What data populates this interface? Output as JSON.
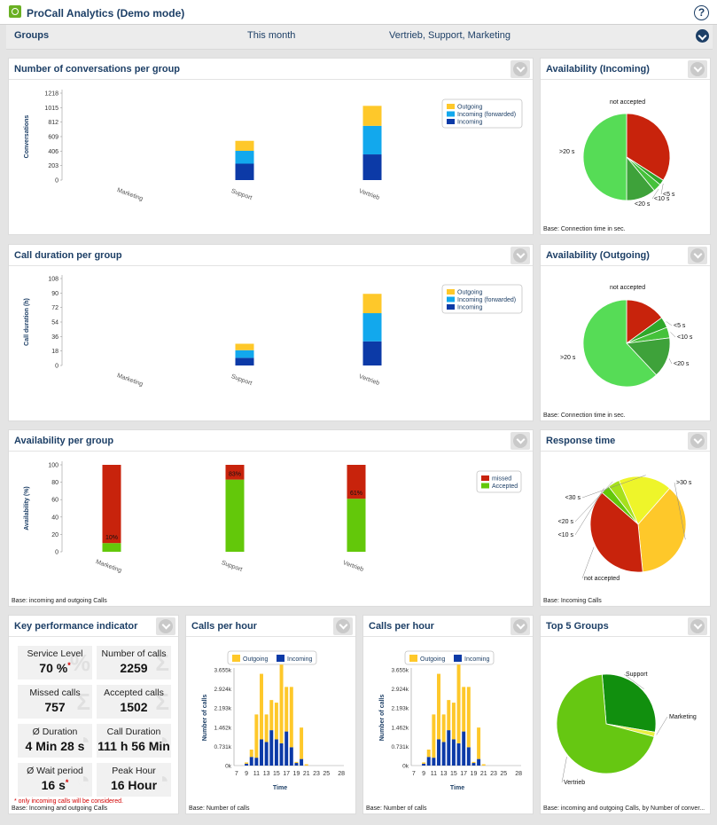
{
  "app": {
    "title": "ProCall Analytics (Demo mode)",
    "help_icon": "question-circle-icon",
    "logo_icon": "procall-logo-icon"
  },
  "filter": {
    "label": "Groups",
    "period": "This month",
    "groups": "Vertrieb, Support, Marketing"
  },
  "colors": {
    "outgoing": "#fec82a",
    "incoming_forwarded": "#12a8ed",
    "incoming": "#0c3aa7",
    "missed": "#c8230c",
    "accepted": "#63c80a",
    "header_text": "#1d3f66"
  },
  "panels": {
    "conversations": {
      "title": "Number of conversations per group"
    },
    "duration": {
      "title": "Call duration per group"
    },
    "availability_group": {
      "title": "Availability per group",
      "note": "Base: incoming and outgoing Calls"
    },
    "avail_in": {
      "title": "Availability (Incoming)",
      "note": "Base: Connection time in sec."
    },
    "avail_out": {
      "title": "Availability (Outgoing)",
      "note": "Base: Connection time in sec."
    },
    "response": {
      "title": "Response time",
      "note": "Base: Incoming Calls"
    },
    "kpi": {
      "title": "Key performance indicator",
      "note": "Base: Incoming and outgoing Calls",
      "footnote": "* only incoming calls will be considered.",
      "asterisk": "*",
      "items": [
        {
          "label": "Service Level",
          "value": "70 %",
          "starred": true
        },
        {
          "label": "Number of calls",
          "value": "2259",
          "starred": false
        },
        {
          "label": "Missed calls",
          "value": "757",
          "starred": false
        },
        {
          "label": "Accepted calls",
          "value": "1502",
          "starred": false
        },
        {
          "label": "Ø Duration",
          "value": "4 Min 28 s",
          "starred": false
        },
        {
          "label": "Call Duration",
          "value": "111 h 56 Min",
          "starred": false
        },
        {
          "label": "Ø Wait period",
          "value": "16 s",
          "starred": true
        },
        {
          "label": "Peak Hour",
          "value": "16 Hour",
          "starred": false
        }
      ]
    },
    "calls_hour_1": {
      "title": "Calls per hour",
      "note": "Base: Number of calls"
    },
    "calls_hour_2": {
      "title": "Calls per hour",
      "note": "Base: Number of calls"
    },
    "top5": {
      "title": "Top 5 Groups",
      "note": "Base: incoming and outgoing Calls, by Number of conver..."
    }
  },
  "chart_data": [
    {
      "id": "conversations",
      "type": "bar",
      "stacked": true,
      "categories": [
        "Marketing",
        "Support",
        "Vertrieb"
      ],
      "series": [
        {
          "name": "Incoming",
          "values": [
            0,
            230,
            360
          ],
          "color": "#0c3aa7"
        },
        {
          "name": "Incoming (forwarded)",
          "values": [
            0,
            180,
            400
          ],
          "color": "#12a8ed"
        },
        {
          "name": "Outgoing",
          "values": [
            0,
            140,
            280
          ],
          "color": "#fec82a"
        }
      ],
      "legend": [
        "Outgoing",
        "Incoming (forwarded)",
        "Incoming"
      ],
      "ylabel": "Conversations",
      "ylim": [
        0,
        1218
      ],
      "yticks": [
        "0",
        "203",
        "406",
        "609",
        "812",
        "1015",
        "1218"
      ]
    },
    {
      "id": "duration",
      "type": "bar",
      "stacked": true,
      "categories": [
        "Marketing",
        "Support",
        "Vertrieb"
      ],
      "series": [
        {
          "name": "Incoming",
          "values": [
            0,
            9.5,
            30
          ],
          "color": "#0c3aa7"
        },
        {
          "name": "Incoming (forwarded)",
          "values": [
            0,
            9.5,
            35
          ],
          "color": "#12a8ed"
        },
        {
          "name": "Outgoing",
          "values": [
            0,
            8,
            24
          ],
          "color": "#fec82a"
        }
      ],
      "legend": [
        "Outgoing",
        "Incoming (forwarded)",
        "Incoming"
      ],
      "ylabel": "Call duration (h)",
      "ylim": [
        0,
        108
      ],
      "yticks": [
        "0",
        "18",
        "36",
        "54",
        "72",
        "90",
        "108"
      ]
    },
    {
      "id": "availability_group",
      "type": "bar",
      "stacked": true,
      "categories": [
        "Marketing",
        "Support",
        "Vertrieb"
      ],
      "series": [
        {
          "name": "Accepted",
          "values": [
            10,
            83,
            61
          ],
          "color": "#63c80a"
        },
        {
          "name": "missed",
          "values": [
            90,
            17,
            39
          ],
          "color": "#c8230c"
        }
      ],
      "data_labels": [
        "10%",
        "83%",
        "61%"
      ],
      "legend": [
        "missed",
        "Accepted"
      ],
      "ylabel": "Availability (%)",
      "ylim": [
        0,
        100
      ],
      "yticks": [
        "0",
        "20",
        "40",
        "60",
        "80",
        "100"
      ]
    },
    {
      "id": "avail_in",
      "type": "pie",
      "slices": [
        {
          "label": "not accepted",
          "value": 34,
          "color": "#c8230c"
        },
        {
          "label": "<5 s",
          "value": 2,
          "color": "#2fa82a"
        },
        {
          "label": "<10 s",
          "value": 3,
          "color": "#45c23a"
        },
        {
          "label": "<20 s",
          "value": 11,
          "color": "#3ea23a"
        },
        {
          "label": ">20 s",
          "value": 50,
          "color": "#56dc56"
        }
      ]
    },
    {
      "id": "avail_out",
      "type": "pie",
      "slices": [
        {
          "label": "not accepted",
          "value": 15,
          "color": "#c8230c"
        },
        {
          "label": "<5 s",
          "value": 4,
          "color": "#2fa82a"
        },
        {
          "label": "<10 s",
          "value": 4,
          "color": "#45c23a"
        },
        {
          "label": "<20 s",
          "value": 15,
          "color": "#3ea23a"
        },
        {
          "label": ">20 s",
          "value": 62,
          "color": "#56dc56"
        }
      ]
    },
    {
      "id": "response",
      "type": "pie",
      "slices": [
        {
          "label": ">30 s",
          "value": 37,
          "color": "#fec82a"
        },
        {
          "label": "not accepted",
          "value": 38,
          "color": "#c8230c"
        },
        {
          "label": "<10 s",
          "value": 3,
          "color": "#63c80a"
        },
        {
          "label": "<20 s",
          "value": 4,
          "color": "#a6e01c"
        },
        {
          "label": "<30 s",
          "value": 18,
          "color": "#eef52a"
        }
      ]
    },
    {
      "id": "calls_hour_1",
      "type": "bar",
      "stacked": true,
      "categories": [
        "7",
        "8",
        "9",
        "10",
        "11",
        "12",
        "13",
        "14",
        "15",
        "16",
        "17",
        "18",
        "19",
        "20",
        "21",
        "22",
        "23",
        "24",
        "25",
        "26",
        "27",
        "28"
      ],
      "xticks": [
        "7",
        "9",
        "11",
        "13",
        "15",
        "17",
        "19",
        "21",
        "23",
        "25",
        "28"
      ],
      "series": [
        {
          "name": "Incoming",
          "values": [
            0,
            0,
            70,
            330,
            300,
            1000,
            900,
            1350,
            1000,
            850,
            1300,
            700,
            100,
            250,
            0,
            0,
            0,
            0,
            0,
            0,
            0,
            0
          ],
          "color": "#0c3aa7"
        },
        {
          "name": "Outgoing",
          "values": [
            0,
            0,
            50,
            280,
            1650,
            2500,
            1050,
            1150,
            1400,
            3000,
            1700,
            2300,
            40,
            1200,
            50,
            0,
            0,
            0,
            0,
            0,
            0,
            0
          ],
          "color": "#fec82a"
        }
      ],
      "legend": [
        "Outgoing",
        "Incoming"
      ],
      "ylabel": "Number of calls",
      "xlabel": "Time",
      "yticks": [
        "0k",
        "0.731k",
        "1.462k",
        "2.193k",
        "2.924k",
        "3.655k"
      ],
      "ylim": [
        0,
        3655
      ]
    },
    {
      "id": "calls_hour_2",
      "type": "bar",
      "stacked": true,
      "categories": [
        "7",
        "8",
        "9",
        "10",
        "11",
        "12",
        "13",
        "14",
        "15",
        "16",
        "17",
        "18",
        "19",
        "20",
        "21",
        "22",
        "23",
        "24",
        "25",
        "26",
        "27",
        "28"
      ],
      "xticks": [
        "7",
        "9",
        "11",
        "13",
        "15",
        "17",
        "19",
        "21",
        "23",
        "25",
        "28"
      ],
      "series": [
        {
          "name": "Incoming",
          "values": [
            0,
            0,
            70,
            330,
            300,
            1000,
            900,
            1350,
            1000,
            850,
            1300,
            700,
            100,
            250,
            0,
            0,
            0,
            0,
            0,
            0,
            0,
            0
          ],
          "color": "#0c3aa7"
        },
        {
          "name": "Outgoing",
          "values": [
            0,
            0,
            50,
            280,
            1650,
            2500,
            1050,
            1150,
            1400,
            3000,
            1700,
            2300,
            40,
            1200,
            50,
            0,
            0,
            0,
            0,
            0,
            0,
            0
          ],
          "color": "#fec82a"
        }
      ],
      "legend": [
        "Outgoing",
        "Incoming"
      ],
      "ylabel": "Number of calls",
      "xlabel": "Time",
      "yticks": [
        "0k",
        "0.731k",
        "1.462k",
        "2.193k",
        "2.924k",
        "3.655k"
      ],
      "ylim": [
        0,
        3655
      ]
    },
    {
      "id": "top5",
      "type": "pie",
      "slices": [
        {
          "label": "Support",
          "value": 29,
          "color": "#118f0e"
        },
        {
          "label": "Marketing",
          "value": 1.5,
          "color": "#e8f040"
        },
        {
          "label": "Vertrieb",
          "value": 69.5,
          "color": "#66c712"
        }
      ]
    }
  ]
}
